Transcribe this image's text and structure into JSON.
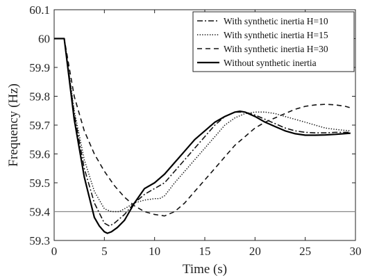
{
  "chart_data": {
    "type": "line",
    "title": "",
    "xlabel": "Time (s)",
    "ylabel": "Frequency (Hz)",
    "xlim": [
      0,
      30
    ],
    "ylim": [
      59.3,
      60.1
    ],
    "xticks": [
      "0",
      "5",
      "10",
      "15",
      "20",
      "25",
      "30"
    ],
    "yticks": [
      "59.3",
      "59.4",
      "59.5",
      "59.6",
      "59.7",
      "59.8",
      "59.9",
      "60",
      "60.1"
    ],
    "grid": false,
    "legend_position": "top-right",
    "reference_line": {
      "y": 59.4,
      "color": "#888888"
    },
    "series": [
      {
        "name": "With synthetic inertia H=10",
        "dash": "dashdot",
        "color": "#111111",
        "x": [
          0,
          1,
          2,
          3,
          4,
          5,
          5.5,
          6,
          7,
          8,
          9,
          10,
          11,
          12,
          13,
          14,
          15,
          16,
          17,
          18,
          19,
          20,
          21,
          22,
          23,
          24,
          25,
          26,
          27,
          28,
          29.5
        ],
        "y": [
          60,
          60,
          59.74,
          59.55,
          59.43,
          59.36,
          59.35,
          59.36,
          59.39,
          59.43,
          59.46,
          59.48,
          59.5,
          59.54,
          59.58,
          59.62,
          59.66,
          59.7,
          59.73,
          59.745,
          59.745,
          59.735,
          59.72,
          59.705,
          59.69,
          59.68,
          59.675,
          59.673,
          59.673,
          59.675,
          59.675
        ]
      },
      {
        "name": "With synthetic inertia H=15",
        "dash": "dotted",
        "color": "#111111",
        "x": [
          0,
          1,
          2,
          3,
          4,
          5,
          5.7,
          6.5,
          7,
          8,
          9,
          10,
          10.5,
          11,
          12,
          13,
          14,
          15,
          16,
          17,
          18,
          19,
          20,
          21,
          22,
          23,
          24,
          25,
          26,
          27,
          28,
          29.5
        ],
        "y": [
          60,
          60,
          59.75,
          59.58,
          59.47,
          59.41,
          59.4,
          59.4,
          59.41,
          59.43,
          59.44,
          59.445,
          59.445,
          59.455,
          59.5,
          59.54,
          59.58,
          59.62,
          59.66,
          59.7,
          59.725,
          59.74,
          59.745,
          59.745,
          59.74,
          59.73,
          59.72,
          59.71,
          59.7,
          59.69,
          59.685,
          59.68
        ]
      },
      {
        "name": "With synthetic inertia H=30",
        "dash": "dashed",
        "color": "#111111",
        "x": [
          0,
          1,
          2,
          3,
          4,
          5,
          6,
          7,
          8,
          9,
          10,
          11,
          12,
          13,
          14,
          15,
          16,
          17,
          18,
          19,
          20,
          21,
          22,
          23,
          24,
          25,
          26,
          27,
          28,
          29,
          29.5
        ],
        "y": [
          60,
          60,
          59.8,
          59.68,
          59.6,
          59.54,
          59.49,
          59.45,
          59.42,
          59.4,
          59.39,
          59.385,
          59.4,
          59.43,
          59.47,
          59.51,
          59.55,
          59.59,
          59.63,
          59.66,
          59.69,
          59.71,
          59.725,
          59.74,
          59.755,
          59.765,
          59.77,
          59.772,
          59.77,
          59.765,
          59.76
        ]
      },
      {
        "name": "Without synthetic inertia",
        "dash": "solid",
        "color": "#000000",
        "x": [
          0,
          1,
          2,
          3,
          3.5,
          4,
          4.5,
          5,
          5.3,
          5.7,
          6.3,
          7,
          8,
          9,
          10,
          11,
          12,
          13,
          14,
          15,
          16,
          17,
          18,
          18.5,
          19,
          20,
          21,
          22,
          23,
          24,
          25,
          26,
          27,
          28,
          29.5
        ],
        "y": [
          60,
          60,
          59.72,
          59.52,
          59.45,
          59.38,
          59.35,
          59.33,
          59.325,
          59.33,
          59.345,
          59.37,
          59.43,
          59.48,
          59.5,
          59.53,
          59.57,
          59.61,
          59.65,
          59.68,
          59.71,
          59.73,
          59.745,
          59.748,
          59.745,
          59.73,
          59.71,
          59.695,
          59.68,
          59.67,
          59.665,
          59.665,
          59.666,
          59.668,
          59.672
        ]
      }
    ]
  }
}
